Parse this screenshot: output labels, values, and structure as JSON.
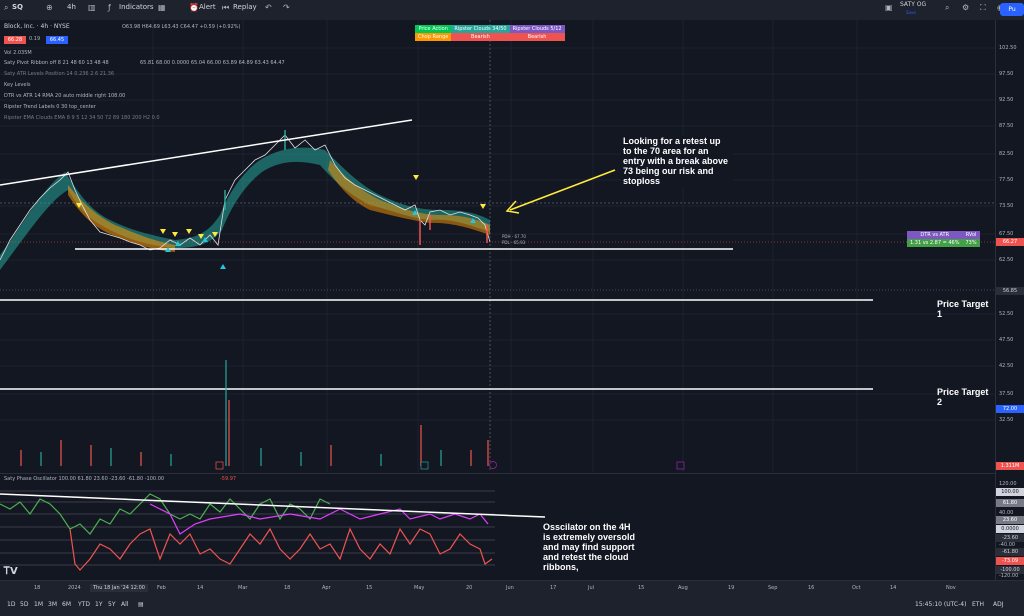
{
  "toolbar": {
    "symbol": "SQ",
    "interval": "4h",
    "indicators_label": "Indicators",
    "alert_label": "Alert",
    "replay_label": "Replay",
    "layout_name": "SATY OG",
    "layout_sub": "Save",
    "publish_label": "Pu"
  },
  "legend": {
    "title": "Block, Inc. · 4h · NYSE",
    "price_boxes": [
      "66.28",
      "0.19",
      "66.45"
    ],
    "ohlc": "O63.98 H64.69 L63.43 C64.47 +0.59 (+0.92%)",
    "vol": "Vol 2.035M",
    "pivot_ribbon": "Saty Pivot Ribbon off 8 21 48 60 13 48 48",
    "pivot_values": "65.81 68.00 0.0000 65.04 66.00 63.89 64.89 63.43 64.47",
    "atr_levels": "Saty ATR Levels Position 14 0.236 2.6 21.36",
    "key_levels": "Key Levels",
    "dtr_vs_atr": "DTR vs ATR 14 RMA 20 auto middle right 108.00",
    "trend_labels": "Ripster Trend Labels 0 30 top_center",
    "ema_clouds": "Ripster EMA Clouds EMA 8 9 5 12 34 50 72 89 180 200 H2 0.0"
  },
  "signal_table": {
    "headers": [
      "Price Action",
      "Ripster Clouds 34/50",
      "Ripster Clouds 5/12"
    ],
    "values": [
      "Chop Range",
      "Bearish",
      "Bearish"
    ],
    "colors": [
      "#00c853",
      "#26a69a",
      "#7e57c2",
      "#ff9800",
      "#ef5350",
      "#ef5350"
    ]
  },
  "dtr_table": {
    "headers": [
      "DTR vs ATR",
      "RVol"
    ],
    "values": [
      "1.31 vs 2.87 = 46%",
      "73%"
    ]
  },
  "annotations": {
    "retest_note": "Looking for a retest up to the 70 area for an entry with a break above 73 being our risk and stoploss",
    "target1": "Price Target 1",
    "target2": "Price Target 2",
    "osc_note": "Osscilator on the 4H is extremely oversold and may find support and retest the cloud ribbons,",
    "pdh": "PDH - 67.70",
    "pdl": "PDL - 65.93"
  },
  "price_axis": {
    "ticks": [
      "102.50",
      "97.50",
      "92.50",
      "87.50",
      "82.50",
      "77.50",
      "73.50",
      "67.50",
      "62.50",
      "56.85",
      "52.50",
      "47.50",
      "42.50",
      "37.50",
      "32.50"
    ],
    "current_price": "66.27",
    "current_color": "#ef5350",
    "level_56": "56.85",
    "vol_tag": "72.00",
    "vol_bottom": "1.311M"
  },
  "oscillator": {
    "title": "Saty Phase Oscillator 100.00 61.80 23.60 -23.60 -61.80 -100.00",
    "value": "-59.97",
    "ticks": [
      "120.00",
      "100.00",
      "61.80",
      "40.00",
      "23.60",
      "0.0000",
      "-23.60",
      "-40.00",
      "-61.80",
      "-73.09",
      "-100.00",
      "-120.00"
    ]
  },
  "time_axis": {
    "labels": [
      "18",
      "2024",
      "Thu 18 Jan '24  12:00",
      "Feb",
      "14",
      "Mar",
      "18",
      "Apr",
      "15",
      "May",
      "20",
      "Jun",
      "17",
      "Jul",
      "15",
      "Aug",
      "19",
      "Sep",
      "16",
      "Oct",
      "14",
      "Nov"
    ]
  },
  "bottom_bar": {
    "ranges": [
      "1D",
      "5D",
      "1M",
      "3M",
      "6M",
      "YTD",
      "1Y",
      "5Y",
      "All"
    ],
    "clock": "15:45:10 (UTC-4)",
    "eth": "ETH",
    "adj": "ADJ"
  }
}
